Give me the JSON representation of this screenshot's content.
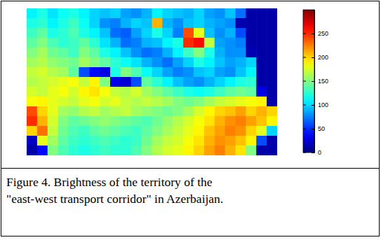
{
  "chart_data": {
    "type": "heatmap",
    "caption": [
      "Figure 4. Brightness of the territory of the",
      "\"east-west transport corridor\" in Azerbaijan."
    ],
    "tick_labels": false,
    "color_range": [
      0,
      300
    ],
    "color_ticks": [
      0,
      50,
      100,
      150,
      200,
      250
    ],
    "values": [
      [
        110,
        120,
        105,
        115,
        120,
        110,
        100,
        95,
        100,
        85,
        80,
        90,
        110,
        100,
        95,
        90,
        100,
        85,
        80,
        95,
        70,
        12,
        12,
        12
      ],
      [
        120,
        125,
        110,
        120,
        130,
        115,
        100,
        80,
        75,
        90,
        100,
        95,
        210,
        90,
        80,
        95,
        100,
        90,
        85,
        80,
        14,
        12,
        12,
        12
      ],
      [
        130,
        140,
        120,
        125,
        135,
        120,
        110,
        95,
        70,
        65,
        85,
        100,
        120,
        100,
        75,
        240,
        180,
        95,
        80,
        90,
        60,
        12,
        12,
        12
      ],
      [
        140,
        150,
        135,
        125,
        130,
        140,
        125,
        105,
        90,
        70,
        75,
        90,
        95,
        110,
        120,
        250,
        260,
        170,
        85,
        80,
        75,
        12,
        12,
        12
      ],
      [
        150,
        160,
        145,
        140,
        130,
        150,
        140,
        120,
        110,
        95,
        80,
        70,
        75,
        90,
        110,
        130,
        150,
        120,
        90,
        80,
        80,
        15,
        12,
        12
      ],
      [
        160,
        165,
        155,
        150,
        145,
        160,
        150,
        140,
        125,
        115,
        105,
        90,
        80,
        70,
        85,
        100,
        120,
        110,
        95,
        85,
        90,
        100,
        12,
        12
      ],
      [
        170,
        175,
        165,
        160,
        140,
        60,
        40,
        30,
        120,
        150,
        135,
        115,
        100,
        85,
        75,
        80,
        95,
        100,
        85,
        80,
        95,
        110,
        12,
        12
      ],
      [
        165,
        170,
        175,
        180,
        185,
        170,
        190,
        150,
        30,
        25,
        60,
        140,
        125,
        110,
        95,
        85,
        80,
        90,
        100,
        110,
        120,
        125,
        12,
        12
      ],
      [
        175,
        170,
        180,
        185,
        175,
        190,
        195,
        185,
        170,
        165,
        175,
        160,
        150,
        140,
        130,
        120,
        115,
        120,
        130,
        140,
        145,
        140,
        30,
        12
      ],
      [
        185,
        190,
        180,
        175,
        170,
        180,
        185,
        175,
        180,
        170,
        165,
        170,
        165,
        160,
        150,
        145,
        150,
        160,
        170,
        175,
        180,
        185,
        190,
        12
      ],
      [
        240,
        200,
        180,
        160,
        155,
        165,
        170,
        160,
        165,
        170,
        160,
        155,
        150,
        145,
        150,
        160,
        175,
        190,
        200,
        205,
        215,
        200,
        210,
        200
      ],
      [
        250,
        210,
        175,
        150,
        140,
        145,
        150,
        155,
        150,
        145,
        140,
        135,
        145,
        155,
        165,
        175,
        185,
        195,
        210,
        220,
        225,
        215,
        205,
        190
      ],
      [
        200,
        230,
        170,
        145,
        135,
        130,
        140,
        145,
        140,
        135,
        130,
        140,
        150,
        160,
        170,
        180,
        190,
        205,
        215,
        225,
        220,
        200,
        180,
        100
      ],
      [
        20,
        180,
        160,
        140,
        130,
        125,
        130,
        135,
        130,
        125,
        130,
        145,
        160,
        170,
        175,
        185,
        195,
        210,
        220,
        215,
        205,
        190,
        60,
        12
      ],
      [
        12,
        40,
        150,
        135,
        125,
        120,
        125,
        130,
        125,
        125,
        135,
        150,
        165,
        175,
        180,
        190,
        200,
        215,
        225,
        210,
        195,
        150,
        12,
        12
      ]
    ]
  }
}
